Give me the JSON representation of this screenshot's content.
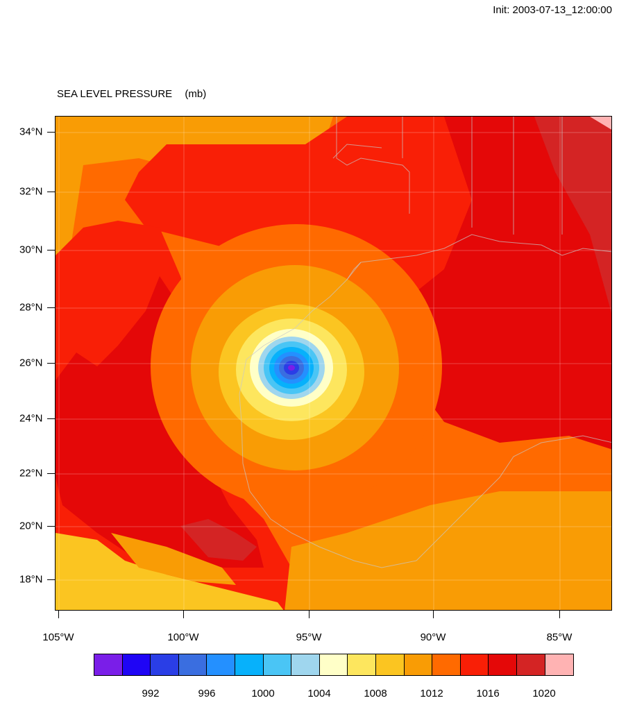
{
  "header": {
    "init_label": "Init: 2003-07-13_12:00:00",
    "title": "SEA LEVEL PRESSURE",
    "units": "(mb)"
  },
  "axes": {
    "lat_labels": [
      "34°N",
      "32°N",
      "30°N",
      "28°N",
      "26°N",
      "24°N",
      "22°N",
      "20°N",
      "18°N"
    ],
    "lon_labels": [
      "105°W",
      "100°W",
      "95°W",
      "90°W",
      "85°W"
    ]
  },
  "colorbar": {
    "colors": [
      "#7a1ee8",
      "#1f05f5",
      "#2a3ee6",
      "#3a6ee0",
      "#2490ff",
      "#07b1fb",
      "#4ac5f5",
      "#9fd6ee",
      "#ffffc8",
      "#fde65e",
      "#fbc521",
      "#f99c05",
      "#ff6a00",
      "#f91f06",
      "#e40808",
      "#d42424",
      "#ffb3b3"
    ],
    "labels": [
      "992",
      "996",
      "1000",
      "1004",
      "1008",
      "1012",
      "1016",
      "1020"
    ]
  },
  "map": {
    "region": "Gulf of Mexico / Texas / Mexico",
    "storm_center": {
      "lat": 25.8,
      "lon": -95.7
    },
    "min_pressure_band": "992"
  }
}
